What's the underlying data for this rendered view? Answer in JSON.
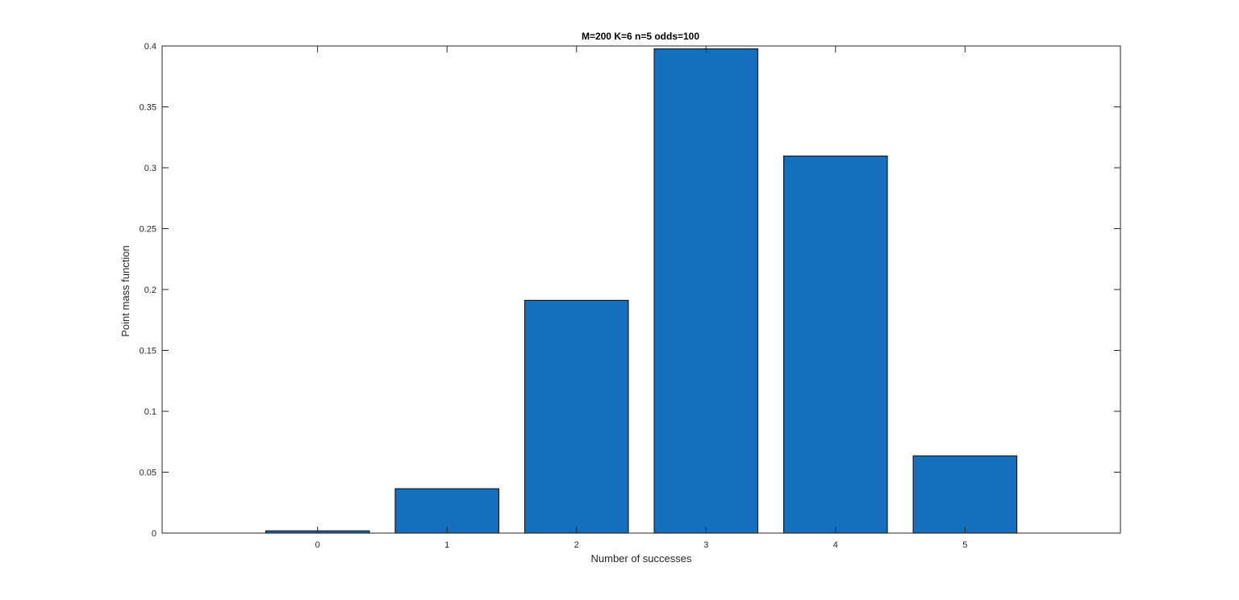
{
  "chart_data": {
    "type": "bar",
    "title": "M=200 K=6 n=5 odds=100",
    "xlabel": "Number of successes",
    "ylabel": "Point mass function",
    "categories": [
      "0",
      "1",
      "2",
      "3",
      "4",
      "5"
    ],
    "x": [
      0,
      1,
      2,
      3,
      4,
      5
    ],
    "values": [
      0.0018,
      0.0364,
      0.1911,
      0.3976,
      0.3096,
      0.0634
    ],
    "xlim": [
      -1.2,
      6.2
    ],
    "ylim": [
      0,
      0.4
    ],
    "yticks": [
      0,
      0.05,
      0.1,
      0.15,
      0.2,
      0.25,
      0.3,
      0.35,
      0.4
    ],
    "ytick_labels": [
      "0",
      "0.05",
      "0.1",
      "0.15",
      "0.2",
      "0.25",
      "0.3",
      "0.35",
      "0.4"
    ],
    "grid": false,
    "legend": "none",
    "bar_color": "#1470BF",
    "edge_color": "#1a1a1a",
    "axis_color": "#262626"
  }
}
